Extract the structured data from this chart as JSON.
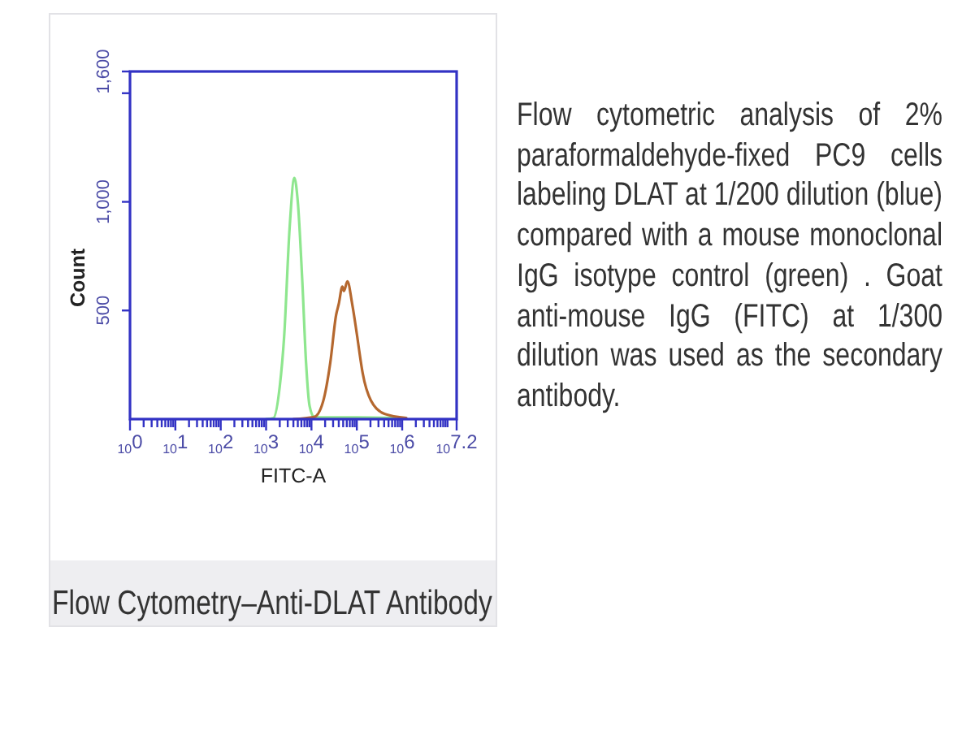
{
  "chart_data": {
    "type": "line",
    "title": "Flow Cytometry–Anti-DLAT Antibody",
    "xlabel": "FITC-A",
    "ylabel": "Count",
    "log": "x",
    "xlim": [
      1,
      15848932
    ],
    "xticks": [
      {
        "value": 1,
        "label": "10$^{0}$"
      },
      {
        "value": 2,
        "label": null
      },
      {
        "value": 3,
        "label": null
      },
      {
        "value": 4,
        "label": null
      },
      {
        "value": 5,
        "label": null
      },
      {
        "value": 6,
        "label": null
      },
      {
        "value": 7,
        "label": null
      },
      {
        "value": 8,
        "label": null
      },
      {
        "value": 9,
        "label": null
      },
      {
        "value": 10,
        "label": "10$^{1}$"
      },
      {
        "value": 20,
        "label": null
      },
      {
        "value": 30,
        "label": null
      },
      {
        "value": 40,
        "label": null
      },
      {
        "value": 50,
        "label": null
      },
      {
        "value": 60,
        "label": null
      },
      {
        "value": 70,
        "label": null
      },
      {
        "value": 80,
        "label": null
      },
      {
        "value": 90,
        "label": null
      },
      {
        "value": 100,
        "label": "10$^{2}$"
      },
      {
        "value": 200,
        "label": null
      },
      {
        "value": 300,
        "label": null
      },
      {
        "value": 400,
        "label": null
      },
      {
        "value": 500,
        "label": null
      },
      {
        "value": 600,
        "label": null
      },
      {
        "value": 700,
        "label": null
      },
      {
        "value": 800,
        "label": null
      },
      {
        "value": 900,
        "label": null
      },
      {
        "value": 1000,
        "label": "10$^{3}$"
      },
      {
        "value": 2000,
        "label": null
      },
      {
        "value": 3000,
        "label": null
      },
      {
        "value": 4000,
        "label": null
      },
      {
        "value": 5000,
        "label": null
      },
      {
        "value": 6000,
        "label": null
      },
      {
        "value": 7000,
        "label": null
      },
      {
        "value": 8000,
        "label": null
      },
      {
        "value": 9000,
        "label": null
      },
      {
        "value": 10000,
        "label": "10$^{4}$"
      },
      {
        "value": 20000,
        "label": null
      },
      {
        "value": 30000,
        "label": null
      },
      {
        "value": 40000,
        "label": null
      },
      {
        "value": 50000,
        "label": null
      },
      {
        "value": 60000,
        "label": null
      },
      {
        "value": 70000,
        "label": null
      },
      {
        "value": 80000,
        "label": null
      },
      {
        "value": 90000,
        "label": null
      },
      {
        "value": 100000,
        "label": "10$^{5}$"
      },
      {
        "value": 200000,
        "label": null
      },
      {
        "value": 300000,
        "label": null
      },
      {
        "value": 400000,
        "label": null
      },
      {
        "value": 500000,
        "label": null
      },
      {
        "value": 600000,
        "label": null
      },
      {
        "value": 700000,
        "label": null
      },
      {
        "value": 800000,
        "label": null
      },
      {
        "value": 900000,
        "label": null
      },
      {
        "value": 1000000,
        "label": "10$^{6}$"
      },
      {
        "value": 2000000,
        "label": null
      },
      {
        "value": 3000000,
        "label": null
      },
      {
        "value": 4000000,
        "label": null
      },
      {
        "value": 5000000,
        "label": null
      },
      {
        "value": 6000000,
        "label": null
      },
      {
        "value": 7000000,
        "label": null
      },
      {
        "value": 8000000,
        "label": null
      },
      {
        "value": 9000000,
        "label": null
      },
      {
        "value": 10000000,
        "label": null
      },
      {
        "value": 15848932,
        "label": "10$^{7.2}$"
      }
    ],
    "ylim": [
      0,
      1600
    ],
    "yticks": [
      {
        "value": 500,
        "label": "500"
      },
      {
        "value": 1000,
        "label": "1,000"
      },
      {
        "value": 1500,
        "label": null
      },
      {
        "value": 1600,
        "label": "1,600"
      }
    ],
    "series": [
      {
        "color": "#8ee68e",
        "x": [
          1000,
          1450,
          2000,
          2500,
          3300,
          4200,
          5000,
          6300,
          7600,
          9100,
          11500,
          20000,
          100000,
          700000
        ],
        "values": [
          0,
          5,
          150,
          380,
          880,
          1110,
          1000,
          630,
          260,
          60,
          10,
          8,
          8,
          5
        ]
      },
      {
        "color": "#b5682f",
        "x": [
          4000,
          11500,
          18000,
          26000,
          35000,
          40000,
          48000,
          52000,
          62000,
          79000,
          102000,
          112000,
          135000,
          204000,
          407000,
          1230000
        ],
        "values": [
          0,
          10,
          80,
          260,
          480,
          530,
          610,
          590,
          634,
          530,
          380,
          320,
          210,
          86,
          24,
          5
        ]
      }
    ],
    "annotations": [
      "Flow cytometric analysis of 2% paraformaldehyde-fixed PC9 cells labeling DLAT at 1/200 dilution (blue) compared with a mouse monoclonal IgG isotype control (green) . Goat anti-mouse IgG (FITC) at 1/300 dilution was used as the secondary antibody."
    ]
  }
}
